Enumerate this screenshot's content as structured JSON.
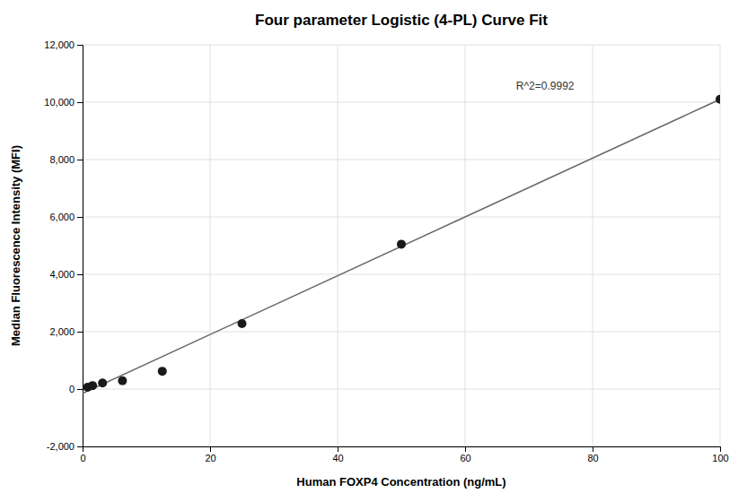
{
  "chart_data": {
    "type": "scatter",
    "title": "Four parameter Logistic (4-PL) Curve Fit",
    "xlabel": "Human FOXP4 Concentration (ng/mL)",
    "ylabel": "Median Fluorescence Intensity (MFI)",
    "series": [
      {
        "type": "line",
        "color": "#666666",
        "x": [
          0,
          100
        ],
        "values": [
          -150,
          10100
        ]
      },
      {
        "type": "scatter",
        "color": "#1a1a1a",
        "x": [
          0.78,
          1.56,
          3.125,
          6.25,
          12.5,
          25,
          50,
          100
        ],
        "values": [
          60,
          120,
          210,
          290,
          620,
          2280,
          5050,
          10100
        ]
      }
    ],
    "xlim": [
      0,
      100
    ],
    "xticks": [
      0,
      20,
      40,
      60,
      80,
      100
    ],
    "ylim": [
      -2000,
      12000
    ],
    "yticks": [
      {
        "value": -2000,
        "label": "-2,000"
      },
      0,
      {
        "value": 2000,
        "label": "2,000"
      },
      {
        "value": 4000,
        "label": "4,000"
      },
      {
        "value": 6000,
        "label": "6,000"
      },
      {
        "value": 8000,
        "label": "8,000"
      },
      {
        "value": 10000,
        "label": "10,000"
      },
      {
        "value": 12000,
        "label": "12,000"
      }
    ],
    "annotations": [
      {
        "text": "R^2=0.9992",
        "x": 68,
        "y": 10450
      }
    ],
    "grid": true
  }
}
